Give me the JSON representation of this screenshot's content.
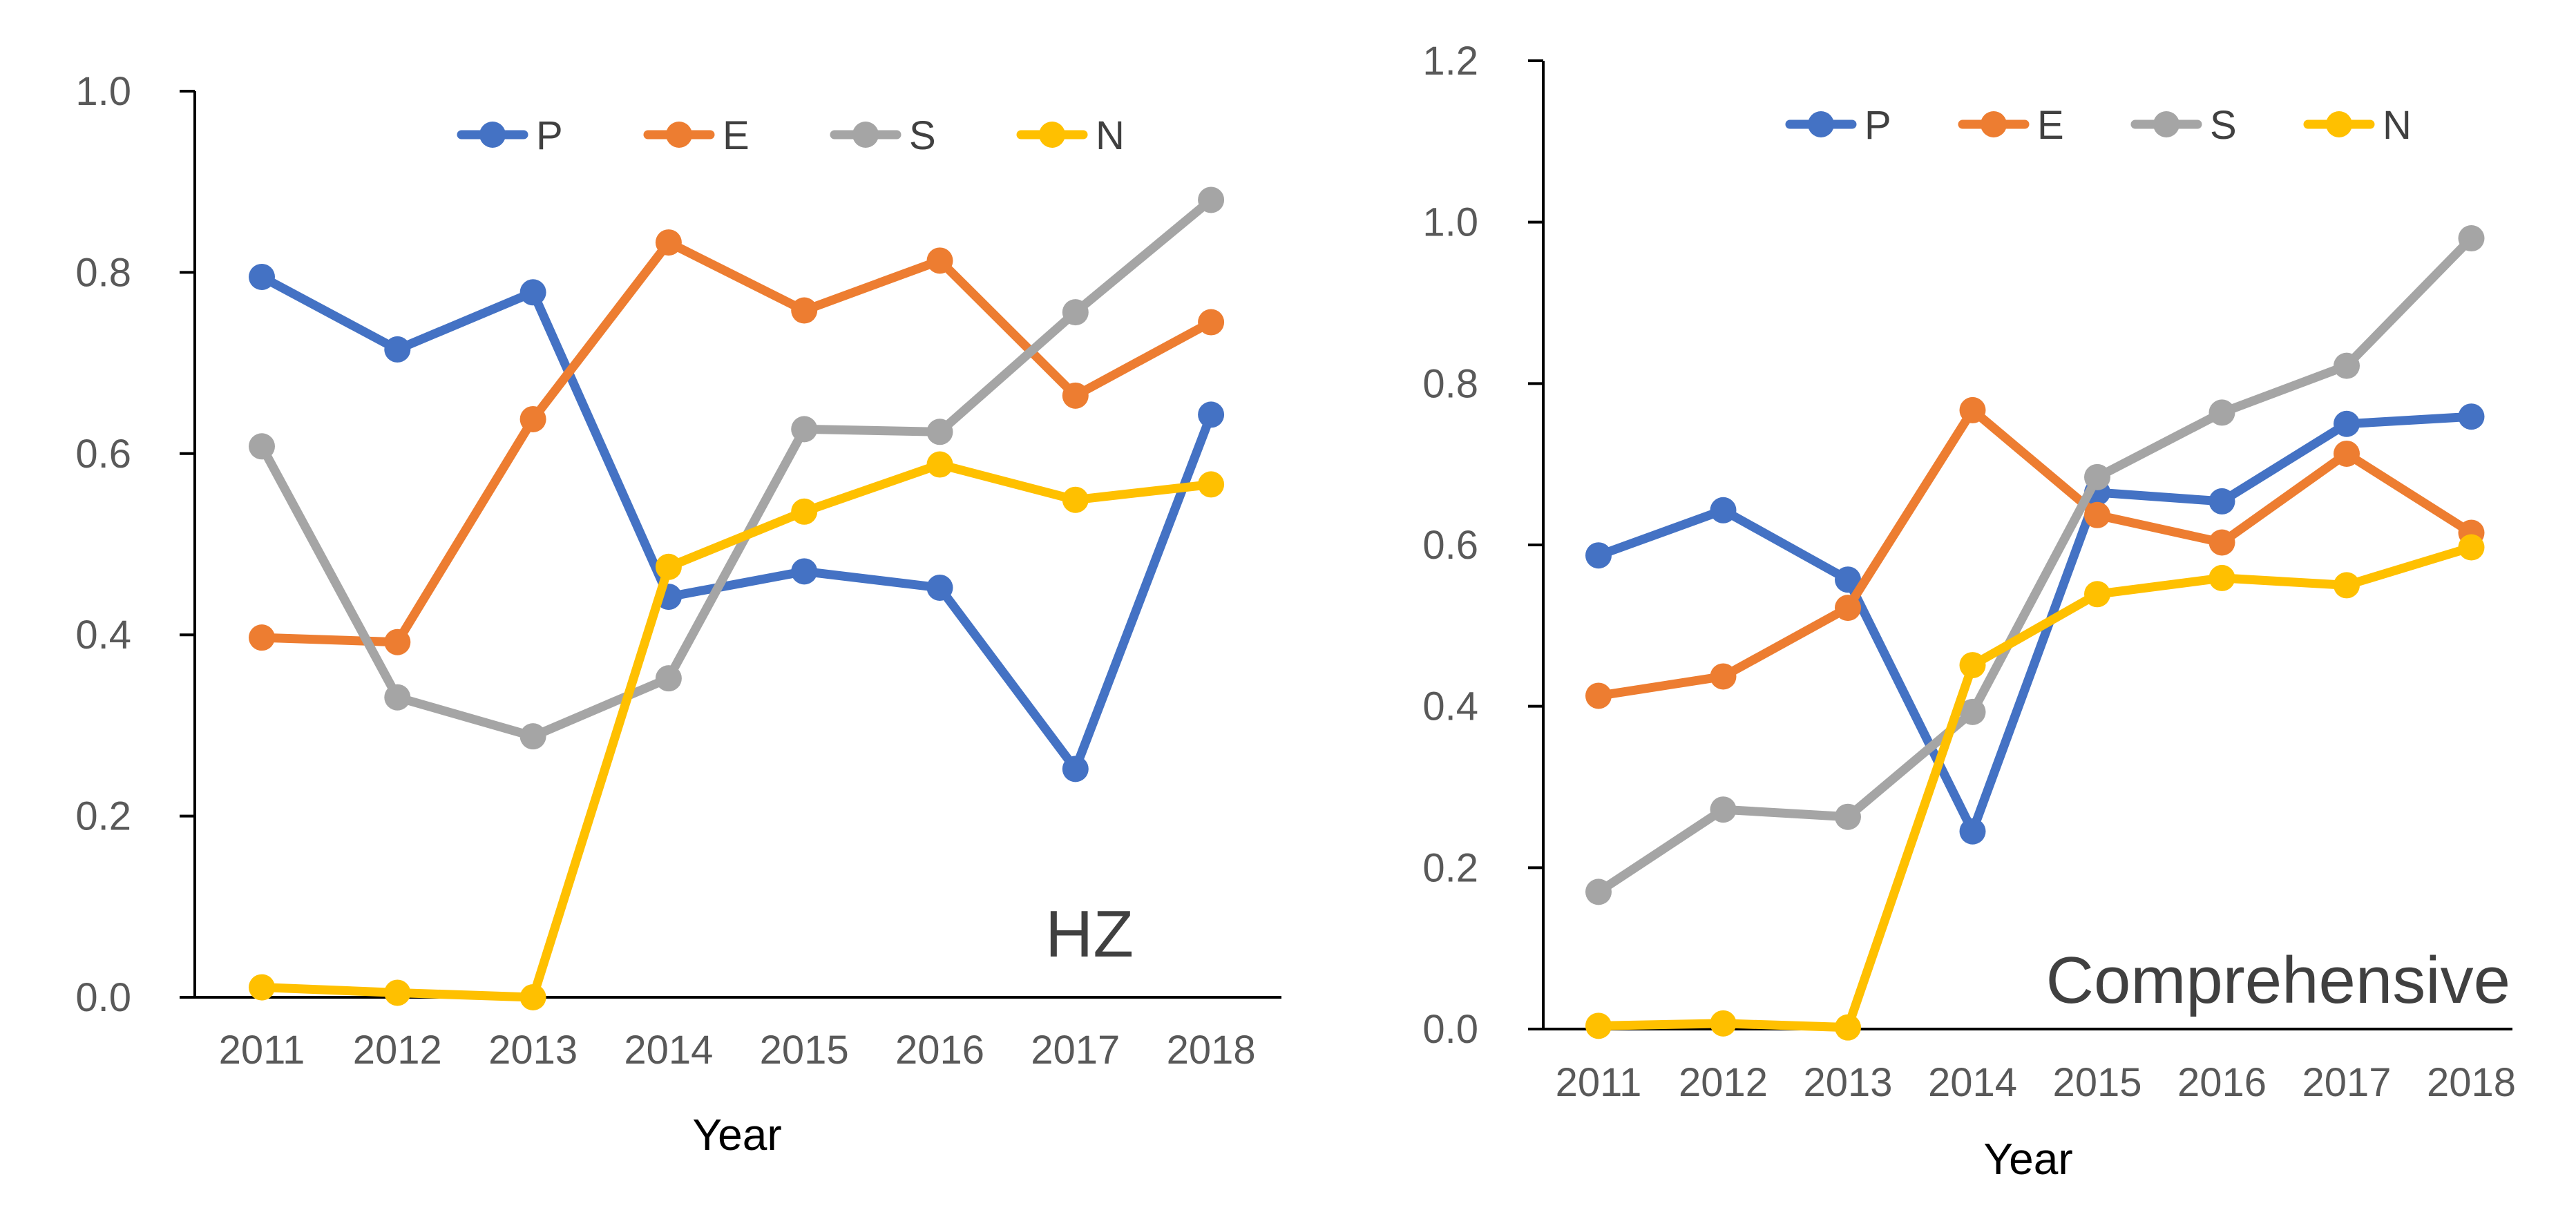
{
  "colors": {
    "P": "#4472C4",
    "E": "#ED7D31",
    "S": "#A5A5A5",
    "N": "#FFC000"
  },
  "chart_data": [
    {
      "type": "line",
      "title": "",
      "annotation": "HZ",
      "xlabel": "Year",
      "ylabel": "",
      "ylim": [
        0,
        1.0
      ],
      "yticks": [
        "0.0",
        "0.2",
        "0.4",
        "0.6",
        "0.8",
        "1.0"
      ],
      "categories": [
        "2011",
        "2012",
        "2013",
        "2014",
        "2015",
        "2016",
        "2017",
        "2018"
      ],
      "legend_position": "top-right",
      "grid": false,
      "series": [
        {
          "name": "P",
          "values": [
            0.795,
            0.715,
            0.778,
            0.442,
            0.47,
            0.452,
            0.252,
            0.643
          ]
        },
        {
          "name": "E",
          "values": [
            0.397,
            0.392,
            0.638,
            0.833,
            0.758,
            0.813,
            0.664,
            0.745
          ]
        },
        {
          "name": "S",
          "values": [
            0.608,
            0.331,
            0.288,
            0.352,
            0.627,
            0.624,
            0.756,
            0.88
          ]
        },
        {
          "name": "N",
          "values": [
            0.011,
            0.005,
            0.0,
            0.475,
            0.536,
            0.588,
            0.549,
            0.566
          ]
        }
      ]
    },
    {
      "type": "line",
      "title": "",
      "annotation": "Comprehensive",
      "xlabel": "Year",
      "ylabel": "",
      "ylim": [
        0,
        1.2
      ],
      "yticks": [
        "0.0",
        "0.2",
        "0.4",
        "0.6",
        "0.8",
        "1.0",
        "1.2"
      ],
      "categories": [
        "2011",
        "2012",
        "2013",
        "2014",
        "2015",
        "2016",
        "2017",
        "2018"
      ],
      "legend_position": "top-right",
      "grid": false,
      "series": [
        {
          "name": "P",
          "values": [
            0.587,
            0.643,
            0.557,
            0.245,
            0.665,
            0.654,
            0.75,
            0.759
          ]
        },
        {
          "name": "E",
          "values": [
            0.413,
            0.437,
            0.522,
            0.767,
            0.637,
            0.603,
            0.713,
            0.615
          ]
        },
        {
          "name": "S",
          "values": [
            0.17,
            0.272,
            0.263,
            0.393,
            0.684,
            0.764,
            0.822,
            0.98
          ]
        },
        {
          "name": "N",
          "values": [
            0.004,
            0.007,
            0.002,
            0.451,
            0.539,
            0.559,
            0.55,
            0.597
          ]
        }
      ]
    }
  ]
}
